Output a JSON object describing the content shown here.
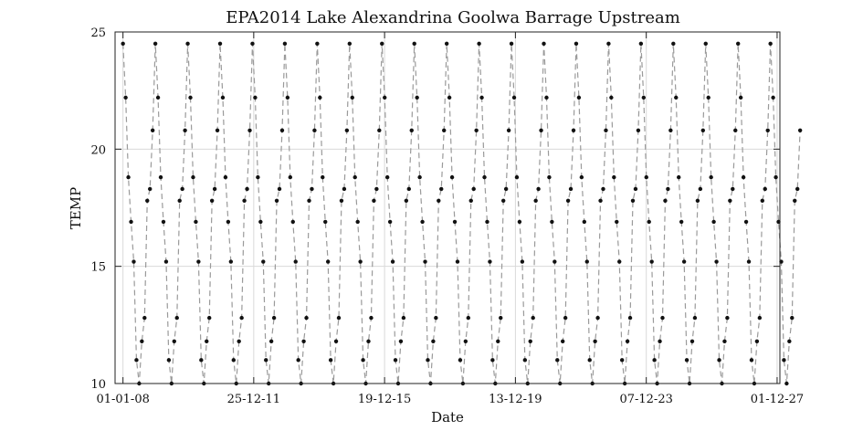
{
  "chart_data": {
    "type": "line",
    "title": "EPA2014 Lake Alexandrina Goolwa Barrage Upstream",
    "xlabel": "Date",
    "ylabel": "TEMP",
    "ylim": [
      10,
      25
    ],
    "yticks": [
      10,
      15,
      20,
      25
    ],
    "xlim": [
      "2007-10-05",
      "2028-01-01"
    ],
    "xticks": [
      "2008-01-01",
      "2011-12-25",
      "2015-12-19",
      "2019-12-13",
      "2023-12-07",
      "2027-12-01"
    ],
    "xtick_labels": [
      "01-01-08",
      "25-12-11",
      "19-12-15",
      "13-12-19",
      "07-12-23",
      "01-12-27"
    ],
    "grid": true,
    "line_style": "dashed",
    "line_color": "#9a9a9a",
    "marker_color": "#111111",
    "series": [
      {
        "start": "2008-01-01",
        "step_days": 30,
        "values": [
          24.5,
          22.2,
          18.8,
          16.9,
          15.2,
          11.0,
          10.0,
          11.8,
          12.8,
          17.8,
          18.3,
          20.8,
          24.5,
          22.2,
          18.8,
          16.9,
          15.2,
          11.0,
          10.0,
          11.8,
          12.8,
          17.8,
          18.3,
          20.8,
          24.5,
          22.2,
          18.8,
          16.9,
          15.2,
          11.0,
          10.0,
          11.8,
          12.8,
          17.8,
          18.3,
          20.8,
          24.5,
          22.2,
          18.8,
          16.9,
          15.2,
          11.0,
          10.0,
          11.8,
          12.8,
          17.8,
          18.3,
          20.8,
          24.5,
          22.2,
          18.8,
          16.9,
          15.2,
          11.0,
          10.0,
          11.8,
          12.8,
          17.8,
          18.3,
          20.8,
          24.5,
          22.2,
          18.8,
          16.9,
          15.2,
          11.0,
          10.0,
          11.8,
          12.8,
          17.8,
          18.3,
          20.8,
          24.5,
          22.2,
          18.8,
          16.9,
          15.2,
          11.0,
          10.0,
          11.8,
          12.8,
          17.8,
          18.3,
          20.8,
          24.5,
          22.2,
          18.8,
          16.9,
          15.2,
          11.0,
          10.0,
          11.8,
          12.8,
          17.8,
          18.3,
          20.8,
          24.5,
          22.2,
          18.8,
          16.9,
          15.2,
          11.0,
          10.0,
          11.8,
          12.8,
          17.8,
          18.3,
          20.8,
          24.5,
          22.2,
          18.8,
          16.9,
          15.2,
          11.0,
          10.0,
          11.8,
          12.8,
          17.8,
          18.3,
          20.8,
          24.5,
          22.2,
          18.8,
          16.9,
          15.2,
          11.0,
          10.0,
          11.8,
          12.8,
          17.8,
          18.3,
          20.8,
          24.5,
          22.2,
          18.8,
          16.9,
          15.2,
          11.0,
          10.0,
          11.8,
          12.8,
          17.8,
          18.3,
          20.8,
          24.5,
          22.2,
          18.8,
          16.9,
          15.2,
          11.0,
          10.0,
          11.8,
          12.8,
          17.8,
          18.3,
          20.8,
          24.5,
          22.2,
          18.8,
          16.9,
          15.2,
          11.0,
          10.0,
          11.8,
          12.8,
          17.8,
          18.3,
          20.8,
          24.5,
          22.2,
          18.8,
          16.9,
          15.2,
          11.0,
          10.0,
          11.8,
          12.8,
          17.8,
          18.3,
          20.8,
          24.5,
          22.2,
          18.8,
          16.9,
          15.2,
          11.0,
          10.0,
          11.8,
          12.8,
          17.8,
          18.3,
          20.8,
          24.5,
          22.2,
          18.8,
          16.9,
          15.2,
          11.0,
          10.0,
          11.8,
          12.8,
          17.8,
          18.3,
          20.8,
          24.5,
          22.2,
          18.8,
          16.9,
          15.2,
          11.0,
          10.0,
          11.8,
          12.8,
          17.8,
          18.3,
          20.8,
          24.5,
          22.2,
          18.8,
          16.9,
          15.2,
          11.0,
          10.0,
          11.8,
          12.8,
          17.8,
          18.3,
          20.8,
          24.5,
          22.2,
          18.8,
          16.9,
          15.2,
          11.0,
          10.0,
          11.8,
          12.8,
          17.8,
          18.3,
          20.8,
          24.5,
          22.2,
          18.8,
          16.9,
          15.2,
          11.0,
          10.0,
          11.8,
          12.8,
          17.8,
          18.3,
          20.8
        ]
      }
    ]
  }
}
